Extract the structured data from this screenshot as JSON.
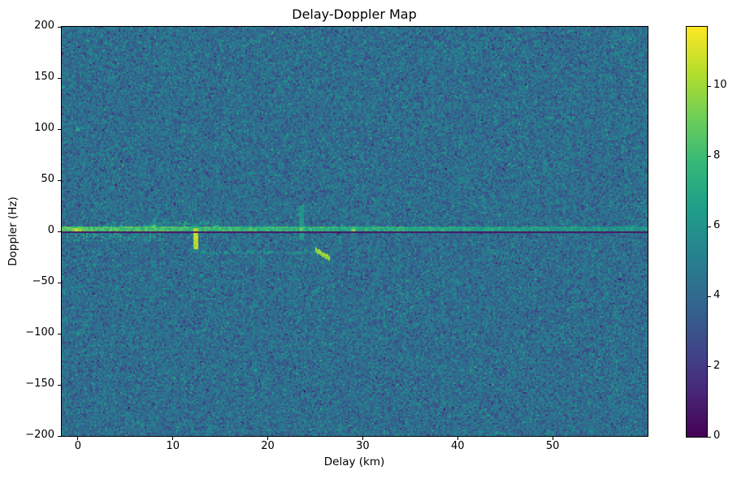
{
  "chart_data": {
    "type": "heatmap",
    "title": "Delay-Doppler Map",
    "xlabel": "Delay (km)",
    "ylabel": "Doppler (Hz)",
    "xlim": [
      -1.7,
      60.0
    ],
    "ylim": [
      -200,
      200
    ],
    "x_ticks": [
      0,
      10,
      20,
      30,
      40,
      50
    ],
    "y_ticks": [
      200,
      150,
      100,
      50,
      0,
      -50,
      -100,
      -150,
      -200
    ],
    "grid": false,
    "legend": "none",
    "colorbar": {
      "position": "right",
      "vmin": 0,
      "vmax": 11.7,
      "ticks": [
        0,
        2,
        4,
        6,
        8,
        10
      ]
    },
    "colormap": {
      "name": "viridis",
      "stops": [
        "#440154",
        "#482878",
        "#3e4989",
        "#31688e",
        "#26828e",
        "#1f9e89",
        "#35b779",
        "#6ece58",
        "#b5de2b",
        "#fde725"
      ]
    },
    "colors": {
      "figure_background": "#ffffff",
      "text": "#000000",
      "spines": "#000000"
    },
    "background_noise": {
      "mean": 4.2,
      "std": 0.85
    },
    "features": [
      {
        "type": "ridge",
        "label": "zero-doppler-clutter-ridge",
        "delay_range": [
          -1.7,
          60.0
        ],
        "doppler_range": [
          0.6,
          4.4
        ],
        "value_start": 8.3,
        "value_end": 5.7,
        "speckle": 2.2
      },
      {
        "type": "band_speckle",
        "label": "near-range-speckle-below-ridge",
        "delay_range": [
          -1.2,
          9.0
        ],
        "doppler_range": [
          -9.0,
          -0.5
        ],
        "density": 0.3,
        "value_range": [
          5.2,
          7.6
        ]
      },
      {
        "type": "band_speckle",
        "label": "broadened-ridge-3-15km",
        "delay_range": [
          3.0,
          15.0
        ],
        "doppler_range": [
          0.5,
          9.5
        ],
        "density": 0.28,
        "value_range": [
          5.2,
          7.4
        ]
      },
      {
        "type": "band_speckle",
        "label": "faint-line-minus20hz",
        "delay_range": [
          12.0,
          25.0
        ],
        "doppler_range": [
          -21.5,
          -18.5
        ],
        "density": 0.55,
        "value_range": [
          5.0,
          6.7
        ]
      },
      {
        "type": "blob",
        "label": "strong-return-at-origin",
        "delay": 0.0,
        "doppler": 1.5,
        "sx": 0.85,
        "sy": 3.0,
        "value": 11.0
      },
      {
        "type": "blob",
        "label": "echo-plus-100hz",
        "delay": 0.0,
        "doppler": 100,
        "sx": 0.32,
        "sy": 1.3,
        "value": 8.4
      },
      {
        "type": "blob",
        "label": "echo-minus-100hz",
        "delay": 0.0,
        "doppler": -100,
        "sx": 0.32,
        "sy": 1.3,
        "value": 7.6
      },
      {
        "type": "blob",
        "label": "target-8km",
        "delay": 8.0,
        "doppler": 4.0,
        "sx": 0.45,
        "sy": 3.2,
        "value": 9.2
      },
      {
        "type": "streak_diag",
        "label": "smear-above-8km",
        "from": [
          7.8,
          6
        ],
        "to": [
          8.6,
          20
        ],
        "width_hz": 2.2,
        "value": 6.4
      },
      {
        "type": "streak_v",
        "label": "strong-streak-12km",
        "delay": 12.4,
        "doppler_range": [
          -17,
          2.5
        ],
        "width": 0.5,
        "value": 11.3
      },
      {
        "type": "streak_diag",
        "label": "smear-above-12km",
        "from": [
          11.7,
          26
        ],
        "to": [
          12.3,
          4
        ],
        "width_hz": 2.4,
        "value": 6.6
      },
      {
        "type": "streak_v",
        "label": "smear-23km",
        "delay": 23.5,
        "doppler_range": [
          -8,
          24
        ],
        "width": 0.45,
        "value": 6.9
      },
      {
        "type": "blob",
        "label": "target-23km",
        "delay": 23.5,
        "doppler": 2,
        "sx": 0.35,
        "sy": 2.5,
        "value": 9.6
      },
      {
        "type": "blob",
        "label": "spot-23km-plus24hz",
        "delay": 23.6,
        "doppler": 24,
        "sx": 0.3,
        "sy": 1.5,
        "value": 7.8
      },
      {
        "type": "streak_diag",
        "label": "moving-target-26km",
        "from": [
          25.0,
          -18
        ],
        "to": [
          26.5,
          -26.5
        ],
        "width_hz": 2.4,
        "value": 10.6
      },
      {
        "type": "blob",
        "label": "target-29km",
        "delay": 29.0,
        "doppler": 1,
        "sx": 0.3,
        "sy": 3.2,
        "value": 10.8
      },
      {
        "type": "blob",
        "label": "weak-spot-34km",
        "delay": 33.8,
        "doppler": 2,
        "sx": 0.25,
        "sy": 1.2,
        "value": 7.3
      },
      {
        "type": "blob",
        "label": "weak-spot-48km",
        "delay": 47.8,
        "doppler": 2,
        "sx": 0.25,
        "sy": 1.2,
        "value": 6.8
      },
      {
        "type": "hline_dark",
        "label": "zero-doppler-notch-line",
        "delay_range": [
          -1.7,
          60.0
        ],
        "doppler": -0.8,
        "half_width_hz": 0.9,
        "value": 0.6
      }
    ]
  }
}
